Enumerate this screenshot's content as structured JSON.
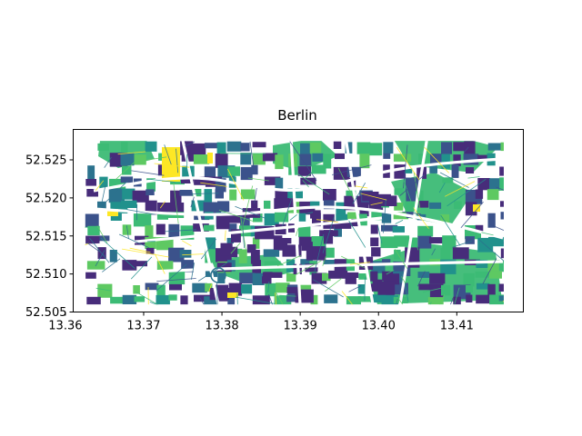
{
  "chart_data": {
    "type": "map",
    "title": "Berlin",
    "xlabel": "",
    "ylabel": "",
    "xlim": [
      13.361,
      13.4185
    ],
    "ylim": [
      52.505,
      52.529
    ],
    "x_ticks": [
      13.36,
      13.37,
      13.38,
      13.39,
      13.4,
      13.41
    ],
    "x_tick_labels": [
      "13.36",
      "13.37",
      "13.38",
      "13.39",
      "13.40",
      "13.41"
    ],
    "y_ticks": [
      52.505,
      52.51,
      52.515,
      52.52,
      52.525
    ],
    "y_tick_labels": [
      "52.505",
      "52.510",
      "52.515",
      "52.520",
      "52.525"
    ],
    "data_extent": {
      "lon": [
        13.3625,
        13.416
      ],
      "lat": [
        52.506,
        52.5275
      ]
    },
    "colormap": "viridis",
    "palette": {
      "dark_purple": "#472c7a",
      "indigo": "#3b528b",
      "blue": "#2c728e",
      "teal": "#21918c",
      "green": "#3cbb75",
      "light_green": "#5ec962",
      "yellow": "#fde725"
    },
    "grid": false,
    "legend": "none"
  }
}
